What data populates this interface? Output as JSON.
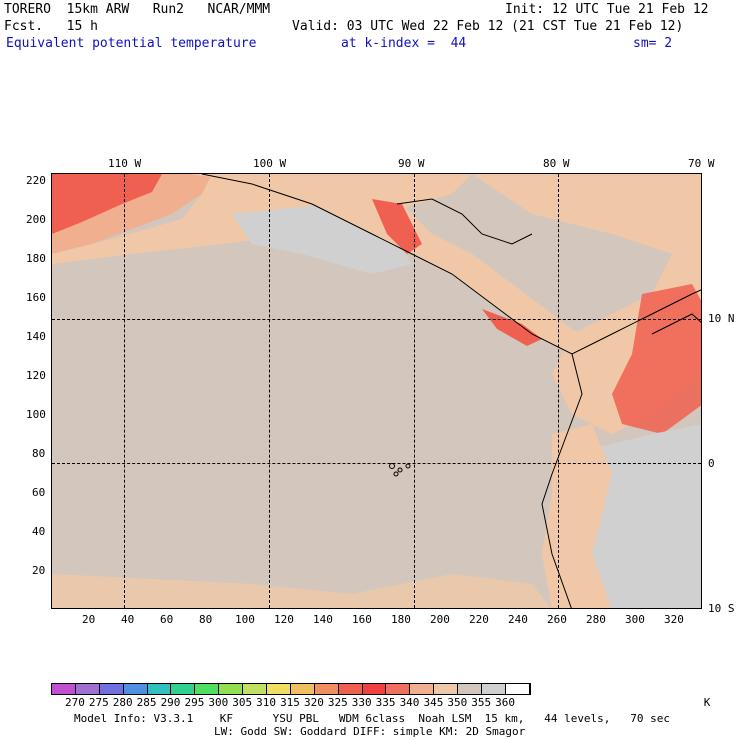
{
  "header": {
    "model": "TORERO  15km ARW   Run2   NCAR/MMM",
    "init": "Init: 12 UTC Tue 21 Feb 12",
    "fcst": "Fcst.   15 h",
    "valid": "Valid: 03 UTC Wed 22 Feb 12 (21 CST Tue 21 Feb 12)",
    "field": "Equivalent potential temperature",
    "kindex": "at k-index =  44",
    "smooth": "sm= 2"
  },
  "map": {
    "top_labels": [
      "110 W",
      "100 W",
      "90 W",
      "80 W",
      "70 W"
    ],
    "right_labels": [
      "10 N",
      "0",
      "10 S"
    ],
    "left_ticks": [
      "220",
      "200",
      "180",
      "160",
      "140",
      "120",
      "100",
      "80",
      "60",
      "40",
      "20"
    ],
    "bottom_ticks": [
      "20",
      "40",
      "60",
      "80",
      "100",
      "120",
      "140",
      "160",
      "180",
      "200",
      "220",
      "240",
      "260",
      "280",
      "300",
      "320"
    ],
    "background_color": "#d3c7bd"
  },
  "colorbar": {
    "labels": [
      "270",
      "275",
      "280",
      "285",
      "290",
      "295",
      "300",
      "305",
      "310",
      "315",
      "320",
      "325",
      "330",
      "335",
      "340",
      "345",
      "350",
      "355",
      "360"
    ],
    "unit": "K",
    "colors": [
      "#c050d0",
      "#a070d0",
      "#7070e0",
      "#5090e0",
      "#30c0c0",
      "#30d090",
      "#50e060",
      "#90e050",
      "#c0e060",
      "#f0e060",
      "#f0c060",
      "#f09060",
      "#f06050",
      "#f04040",
      "#f07060",
      "#f0b090",
      "#f0c8a8",
      "#d3c7bd",
      "#d0d0d0",
      "#ffffff"
    ]
  },
  "footer": {
    "line1": "Model Info: V3.3.1    KF      YSU PBL   WDM 6class  Noah LSM  15 km,   44 levels,   70 sec",
    "line2": "LW: Godd SW: Goddard DIFF: simple KM: 2D Smagor"
  }
}
